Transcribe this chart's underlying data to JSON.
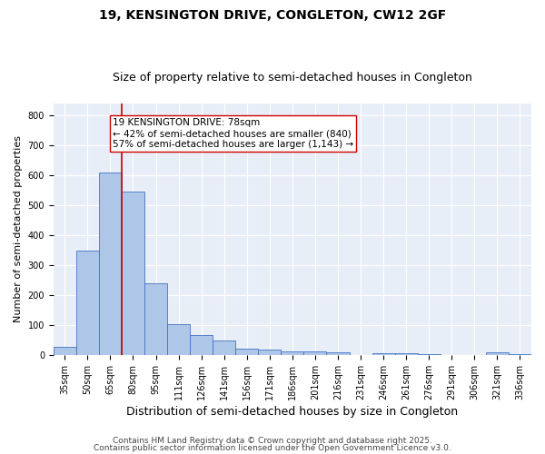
{
  "title1": "19, KENSINGTON DRIVE, CONGLETON, CW12 2GF",
  "title2": "Size of property relative to semi-detached houses in Congleton",
  "xlabel": "Distribution of semi-detached houses by size in Congleton",
  "ylabel": "Number of semi-detached properties",
  "categories": [
    "35sqm",
    "50sqm",
    "65sqm",
    "80sqm",
    "95sqm",
    "111sqm",
    "126sqm",
    "141sqm",
    "156sqm",
    "171sqm",
    "186sqm",
    "201sqm",
    "216sqm",
    "231sqm",
    "246sqm",
    "261sqm",
    "276sqm",
    "291sqm",
    "306sqm",
    "321sqm",
    "336sqm"
  ],
  "values": [
    28,
    348,
    610,
    545,
    240,
    102,
    68,
    48,
    20,
    18,
    11,
    11,
    8,
    0,
    5,
    5,
    2,
    0,
    0,
    8,
    4
  ],
  "bar_color": "#aec6e8",
  "bar_edge_color": "#4472c4",
  "property_label": "19 KENSINGTON DRIVE: 78sqm",
  "pct_smaller": 42,
  "pct_larger": 57,
  "count_smaller": 840,
  "count_larger": 1143,
  "vline_x_index": 2.5,
  "annotation_box_color": "#ffffff",
  "annotation_box_edge": "#cc0000",
  "vline_color": "#cc0000",
  "ylim_max": 840,
  "yticks": [
    0,
    100,
    200,
    300,
    400,
    500,
    600,
    700,
    800
  ],
  "bg_color": "#e8eef7",
  "footer1": "Contains HM Land Registry data © Crown copyright and database right 2025.",
  "footer2": "Contains public sector information licensed under the Open Government Licence v3.0.",
  "title1_fontsize": 10,
  "title2_fontsize": 9,
  "xlabel_fontsize": 9,
  "ylabel_fontsize": 8,
  "tick_fontsize": 7,
  "footer_fontsize": 6.5,
  "annotation_fontsize": 7.5
}
